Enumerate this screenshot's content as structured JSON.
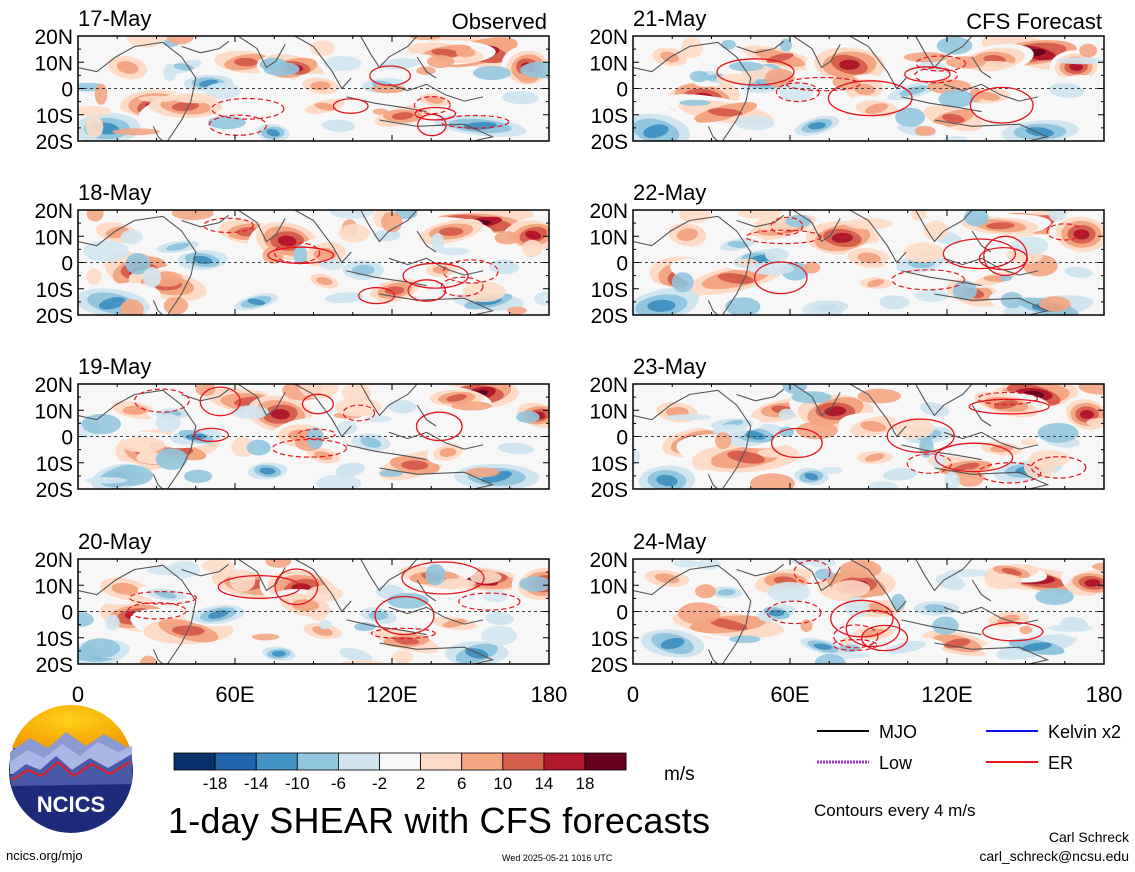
{
  "colors": {
    "colorbar": [
      "#08306b",
      "#2166ac",
      "#4393c3",
      "#92c5de",
      "#d1e5f0",
      "#f7f7f7",
      "#fddbc7",
      "#f4a582",
      "#d6604d",
      "#b2182b",
      "#67001f"
    ],
    "mjo": "#000000",
    "kelvin": "#1010ee",
    "low": "#9933cc",
    "er": "#e8141e",
    "coast": "#555555"
  },
  "map_data": {
    "region": "tropical Indian Ocean and western Pacific",
    "lon_range": [
      0,
      180
    ],
    "lat_range": [
      -20,
      20
    ],
    "lon_tick_labels": [
      "0",
      "60E",
      "120E",
      "180"
    ],
    "lat_tick_labels": [
      "20N",
      "10N",
      "0",
      "10S",
      "20S"
    ],
    "field": "1-day vertical wind shear anomaly",
    "columns": [
      {
        "label": "Observed",
        "panels": [
          "17-May",
          "18-May",
          "19-May",
          "20-May"
        ]
      },
      {
        "label": "CFS Forecast",
        "panels": [
          "21-May",
          "22-May",
          "23-May",
          "24-May"
        ]
      }
    ]
  },
  "colorbar": {
    "tick_labels": [
      "-18",
      "-14",
      "-10",
      "-6",
      "-2",
      "2",
      "6",
      "10",
      "14",
      "18"
    ],
    "units": "m/s"
  },
  "legend": {
    "items": [
      {
        "label": "MJO",
        "color_key": "mjo",
        "style": "solid"
      },
      {
        "label": "Kelvin x2",
        "color_key": "kelvin",
        "style": "solid"
      },
      {
        "label": "Low",
        "color_key": "low",
        "style": "dotted"
      },
      {
        "label": "ER",
        "color_key": "er",
        "style": "solid"
      }
    ],
    "contour_note": "Contours every 4 m/s"
  },
  "title": "1-day SHEAR with CFS forecasts",
  "logo": {
    "text": "NCICS"
  },
  "footer": {
    "url": "ncics.org/mjo",
    "timestamp": "Wed 2025-05-21 1016 UTC",
    "author": "Carl Schreck",
    "email": "carl_schreck@ncsu.edu"
  }
}
